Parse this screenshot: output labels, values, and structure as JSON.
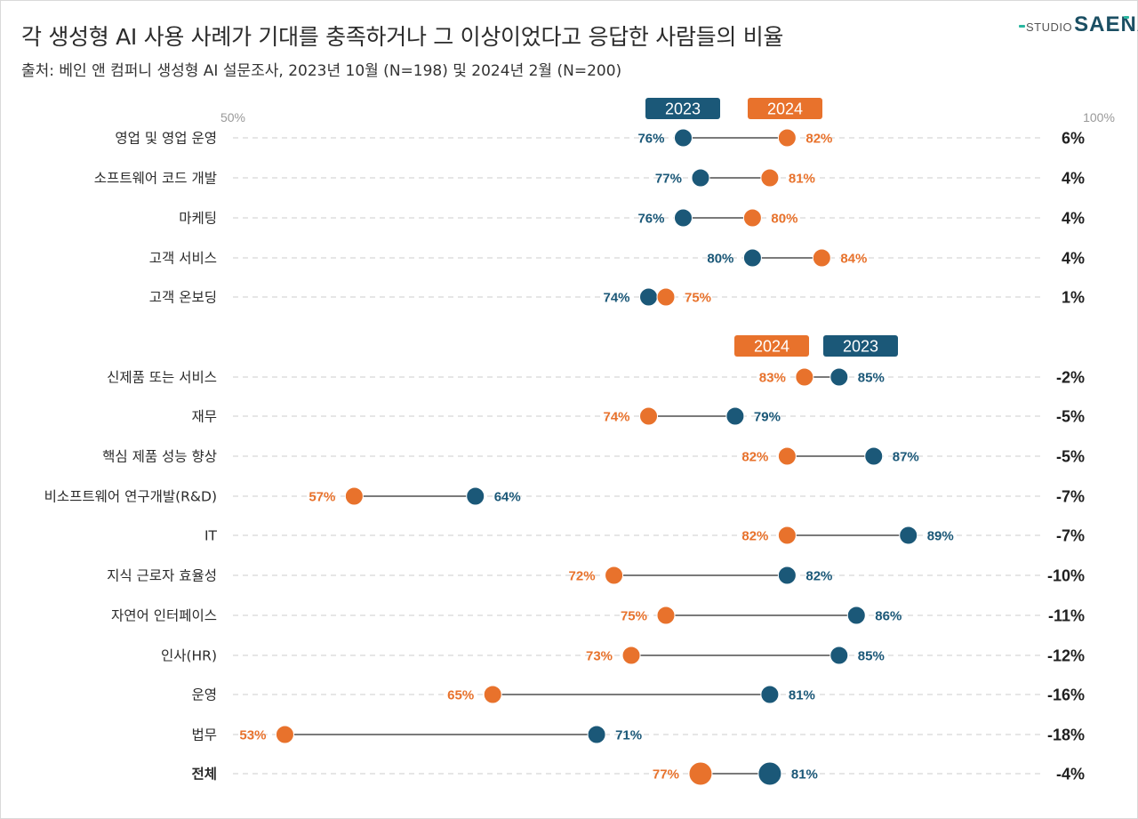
{
  "header": {
    "title": "각 생성형 AI 사용 사례가 기대를 충족하거나 그 이상이었다고 응답한 사람들의 비율",
    "subtitle": "출처: 베인 앤 컴퍼니 생성형 AI 설문조사, 2023년 10월 (N=198) 및 2024년 2월 (N=200)"
  },
  "logo": {
    "small": "STUDIO",
    "large": "SAENA"
  },
  "colors": {
    "series_2023": "#1b5878",
    "series_2024": "#e8722c",
    "grid": "#cccccc",
    "connector": "#2b2b2b"
  },
  "chart_data": {
    "type": "dumbbell",
    "axis": {
      "min_label": "50%",
      "max_label": "100%",
      "range": [
        50,
        100
      ],
      "unit": "%"
    },
    "series": [
      {
        "name": "2023",
        "color": "#1b5878"
      },
      {
        "name": "2024",
        "color": "#e8722c"
      }
    ],
    "groups": [
      {
        "legend_order": [
          "2023",
          "2024"
        ],
        "rows": [
          {
            "label": "영업 및 영업 운영",
            "v2023": 76,
            "v2024": 82,
            "diff": "6%"
          },
          {
            "label": "소프트웨어 코드 개발",
            "v2023": 77,
            "v2024": 81,
            "diff": "4%"
          },
          {
            "label": "마케팅",
            "v2023": 76,
            "v2024": 80,
            "diff": "4%"
          },
          {
            "label": "고객 서비스",
            "v2023": 80,
            "v2024": 84,
            "diff": "4%"
          },
          {
            "label": "고객 온보딩",
            "v2023": 74,
            "v2024": 75,
            "diff": "1%"
          }
        ]
      },
      {
        "legend_order": [
          "2024",
          "2023"
        ],
        "rows": [
          {
            "label": "신제품 또는 서비스",
            "v2023": 85,
            "v2024": 83,
            "diff": "-2%"
          },
          {
            "label": "재무",
            "v2023": 79,
            "v2024": 74,
            "diff": "-5%"
          },
          {
            "label": "핵심 제품 성능 향상",
            "v2023": 87,
            "v2024": 82,
            "diff": "-5%"
          },
          {
            "label": "비소프트웨어 연구개발(R&D)",
            "v2023": 64,
            "v2024": 57,
            "diff": "-7%"
          },
          {
            "label": "IT",
            "v2023": 89,
            "v2024": 82,
            "diff": "-7%"
          },
          {
            "label": "지식 근로자 효율성",
            "v2023": 82,
            "v2024": 72,
            "diff": "-10%"
          },
          {
            "label": "자연어 인터페이스",
            "v2023": 86,
            "v2024": 75,
            "diff": "-11%"
          },
          {
            "label": "인사(HR)",
            "v2023": 85,
            "v2024": 73,
            "diff": "-12%"
          },
          {
            "label": "운영",
            "v2023": 81,
            "v2024": 65,
            "diff": "-16%"
          },
          {
            "label": "법무",
            "v2023": 71,
            "v2024": 53,
            "diff": "-18%"
          }
        ]
      }
    ],
    "total": {
      "label": "전체",
      "v2023": 81,
      "v2024": 77,
      "diff": "-4%"
    }
  }
}
